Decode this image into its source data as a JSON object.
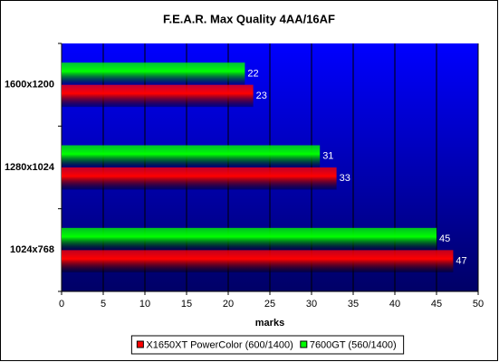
{
  "chart_data": {
    "type": "hbar",
    "title": "F.E.A.R. Max Quality 4AA/16AF",
    "categories": [
      "1600x1200",
      "1280x1024",
      "1024x768"
    ],
    "series": [
      {
        "name": "X1650XT PowerColor (600/1400)",
        "color": "#ff0000",
        "values": [
          23,
          33,
          47
        ]
      },
      {
        "name": "7600GT (560/1400)",
        "color": "#00ff00",
        "values": [
          22,
          31,
          45
        ]
      }
    ],
    "xlabel": "marks",
    "xlim": [
      0,
      50
    ],
    "xticks": [
      0,
      5,
      10,
      15,
      20,
      25,
      30,
      35,
      40,
      45,
      50
    ],
    "grid": true,
    "legend": "bottom"
  }
}
